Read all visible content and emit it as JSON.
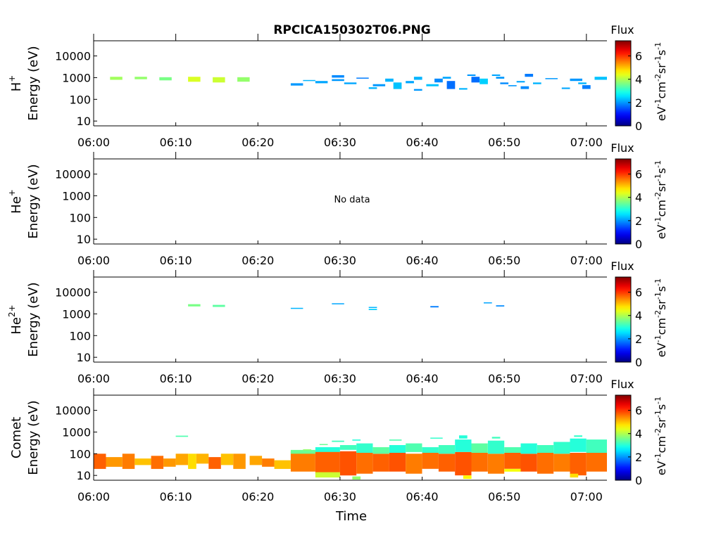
{
  "title": "RPCICA150302T06.PNG",
  "chart_data": {
    "type": "heatmap",
    "xlabel": "Time",
    "x_ticks": [
      "06:00",
      "06:10",
      "06:20",
      "06:30",
      "06:40",
      "06:50",
      "07:00"
    ],
    "x_range_minutes": [
      0,
      62.5
    ],
    "y_scale": "log",
    "y_ticks": [
      "10",
      "100",
      "1000",
      "10000"
    ],
    "y_range_eV": [
      6,
      50000
    ],
    "colorbar": {
      "label": "Flux",
      "unit_label": "eV-1cm-2sr-1s-1",
      "range": [
        0,
        7.3
      ],
      "ticks": [
        "0",
        "2",
        "4",
        "6"
      ],
      "colormap": "jet"
    },
    "panels": [
      {
        "species": "H+",
        "ylabel_species": "H",
        "ylabel_sup": "+",
        "ylabel_energy": "Energy (eV)",
        "cells": [
          [
            2,
            3.5,
            800,
            1100,
            3.9
          ],
          [
            5,
            6.5,
            850,
            1100,
            3.8
          ],
          [
            8,
            9.5,
            750,
            1050,
            3.6
          ],
          [
            11.5,
            13,
            650,
            1100,
            4.3
          ],
          [
            14.5,
            16,
            600,
            1050,
            4.2
          ],
          [
            17.5,
            19,
            650,
            1050,
            3.8
          ],
          [
            24,
            25.5,
            430,
            550,
            2.0
          ],
          [
            25.5,
            27,
            700,
            780,
            2.2
          ],
          [
            27,
            28.5,
            550,
            700,
            2.1
          ],
          [
            29,
            30.5,
            1000,
            1300,
            1.9
          ],
          [
            29,
            30.5,
            700,
            850,
            2.0
          ],
          [
            30.5,
            32,
            500,
            600,
            2.1
          ],
          [
            32,
            33.5,
            900,
            1000,
            1.8
          ],
          [
            33.5,
            34.5,
            300,
            360,
            2.2
          ],
          [
            34,
            35.5,
            400,
            500,
            2.0
          ],
          [
            35.5,
            36.5,
            650,
            900,
            2.2
          ],
          [
            36.5,
            37.5,
            300,
            600,
            2.3
          ],
          [
            38,
            39,
            550,
            700,
            2.1
          ],
          [
            39,
            40,
            800,
            1100,
            2.2
          ],
          [
            39,
            40,
            250,
            300,
            2.0
          ],
          [
            40.5,
            42,
            400,
            500,
            2.3
          ],
          [
            41.5,
            42.5,
            600,
            900,
            1.9
          ],
          [
            42.5,
            43.5,
            900,
            1100,
            2.1
          ],
          [
            43,
            44,
            300,
            700,
            1.7
          ],
          [
            44.5,
            45.5,
            280,
            330,
            2.2
          ],
          [
            45.5,
            46.5,
            1200,
            1400,
            2.0
          ],
          [
            46,
            47,
            600,
            1100,
            1.7
          ],
          [
            47,
            48,
            500,
            900,
            2.4
          ],
          [
            48.5,
            49.5,
            1200,
            1400,
            2.1
          ],
          [
            49,
            50,
            900,
            1100,
            2.0
          ],
          [
            49.5,
            50.5,
            500,
            600,
            1.9
          ],
          [
            50.5,
            51.5,
            400,
            450,
            2.0
          ],
          [
            51.5,
            52.5,
            600,
            700,
            2.1
          ],
          [
            52,
            53,
            300,
            400,
            1.9
          ],
          [
            52.5,
            53.5,
            1100,
            1500,
            1.8
          ],
          [
            53.5,
            54.5,
            500,
            600,
            2.2
          ],
          [
            55,
            56.5,
            850,
            950,
            2.0
          ],
          [
            57,
            58,
            300,
            350,
            2.1
          ],
          [
            58,
            59.5,
            700,
            900,
            2.0
          ],
          [
            59,
            60,
            500,
            600,
            2.2
          ],
          [
            59.5,
            60.5,
            300,
            450,
            1.8
          ],
          [
            61,
            62.5,
            800,
            1100,
            2.3
          ]
        ]
      },
      {
        "species": "He+",
        "ylabel_species": "He",
        "ylabel_sup": "+",
        "ylabel_energy": "Energy (eV)",
        "no_data_text": "No data",
        "cells": []
      },
      {
        "species": "He2+",
        "ylabel_species": "He",
        "ylabel_sup": "2+",
        "ylabel_energy": "Energy (eV)",
        "cells": [
          [
            11.5,
            13,
            2200,
            2800,
            3.6
          ],
          [
            14.5,
            16,
            2100,
            2600,
            3.4
          ],
          [
            24,
            25.5,
            1700,
            1900,
            2.2
          ],
          [
            29,
            30.5,
            2800,
            3100,
            2.1
          ],
          [
            33.5,
            34.5,
            1500,
            1700,
            2.4
          ],
          [
            33.5,
            34.5,
            1900,
            2100,
            2.2
          ],
          [
            41,
            42,
            2000,
            2300,
            1.8
          ],
          [
            47.5,
            48.5,
            3100,
            3400,
            2.1
          ],
          [
            49,
            50,
            2200,
            2500,
            1.9
          ]
        ]
      },
      {
        "species": "Comet",
        "ylabel_species": "Comet",
        "ylabel_sup": "",
        "ylabel_energy": "Energy (eV)",
        "cells": [
          [
            0,
            1.5,
            20,
            100,
            5.7
          ],
          [
            1.5,
            3.5,
            25,
            70,
            5.3
          ],
          [
            3.5,
            5,
            20,
            100,
            5.5
          ],
          [
            5,
            7,
            30,
            60,
            5.0
          ],
          [
            7,
            8.5,
            20,
            80,
            5.6
          ],
          [
            8.5,
            10,
            25,
            60,
            5.3
          ],
          [
            10,
            11.5,
            30,
            100,
            5.2
          ],
          [
            11.5,
            12.5,
            20,
            100,
            4.8
          ],
          [
            12.5,
            14,
            35,
            100,
            5.1
          ],
          [
            14,
            15.5,
            20,
            70,
            5.7
          ],
          [
            15.5,
            17,
            30,
            100,
            5.0
          ],
          [
            17,
            18.5,
            20,
            100,
            5.3
          ],
          [
            19,
            20.5,
            30,
            80,
            5.2
          ],
          [
            20.5,
            22,
            25,
            60,
            5.5
          ],
          [
            22,
            24,
            20,
            50,
            5.0
          ],
          [
            24,
            27,
            15,
            130,
            5.5
          ],
          [
            27,
            30,
            12,
            130,
            5.7
          ],
          [
            30,
            32,
            10,
            130,
            5.8
          ],
          [
            32,
            34,
            12,
            110,
            5.6
          ],
          [
            34,
            36,
            15,
            100,
            5.7
          ],
          [
            36,
            38,
            15,
            110,
            5.8
          ],
          [
            38,
            40,
            12,
            100,
            5.5
          ],
          [
            40,
            42,
            20,
            110,
            5.6
          ],
          [
            42,
            44,
            15,
            100,
            5.7
          ],
          [
            44,
            46,
            10,
            120,
            5.8
          ],
          [
            46,
            48,
            15,
            110,
            5.6
          ],
          [
            48,
            50,
            12,
            100,
            5.5
          ],
          [
            50,
            52,
            20,
            110,
            5.7
          ],
          [
            52,
            54,
            15,
            100,
            5.8
          ],
          [
            54,
            56,
            12,
            110,
            5.6
          ],
          [
            56,
            58,
            15,
            100,
            5.5
          ],
          [
            58,
            60,
            10,
            110,
            5.7
          ],
          [
            60,
            62.5,
            15,
            120,
            5.6
          ],
          [
            24,
            27,
            100,
            150,
            3.5
          ],
          [
            27,
            30,
            120,
            200,
            3.0
          ],
          [
            30,
            32,
            150,
            250,
            3.2
          ],
          [
            32,
            34,
            110,
            300,
            3.1
          ],
          [
            34,
            36,
            100,
            200,
            3.4
          ],
          [
            36,
            38,
            110,
            250,
            3.0
          ],
          [
            38,
            40,
            120,
            300,
            3.3
          ],
          [
            40,
            42,
            110,
            200,
            3.1
          ],
          [
            42,
            44,
            100,
            250,
            3.2
          ],
          [
            44,
            46,
            120,
            450,
            3.0
          ],
          [
            46,
            48,
            110,
            300,
            3.4
          ],
          [
            48,
            50,
            100,
            400,
            3.1
          ],
          [
            50,
            52,
            110,
            200,
            3.3
          ],
          [
            52,
            54,
            100,
            300,
            3.0
          ],
          [
            54,
            56,
            110,
            250,
            3.2
          ],
          [
            56,
            58,
            100,
            350,
            3.1
          ],
          [
            58,
            60,
            120,
            500,
            3.0
          ],
          [
            60,
            62.5,
            110,
            450,
            3.2
          ],
          [
            25.5,
            26.5,
            150,
            160,
            3.8
          ],
          [
            27.5,
            28.5,
            250,
            280,
            3.5
          ],
          [
            29,
            30.5,
            350,
            400,
            3.2
          ],
          [
            31.5,
            32.5,
            400,
            450,
            3.0
          ],
          [
            36,
            37.5,
            400,
            450,
            3.3
          ],
          [
            41,
            42.5,
            500,
            550,
            3.1
          ],
          [
            44.5,
            45.5,
            500,
            700,
            3.0
          ],
          [
            48.5,
            49.5,
            500,
            600,
            3.2
          ],
          [
            58.5,
            59.5,
            600,
            700,
            3.1
          ],
          [
            10,
            11.5,
            600,
            680,
            3.3
          ],
          [
            27,
            30,
            8,
            14,
            4.2
          ],
          [
            31.5,
            32.5,
            6.5,
            9,
            3.8
          ],
          [
            45,
            46,
            7,
            10,
            4.6
          ],
          [
            50,
            52,
            15,
            20,
            4.5
          ],
          [
            58,
            59,
            8,
            12,
            4.8
          ]
        ]
      }
    ]
  }
}
